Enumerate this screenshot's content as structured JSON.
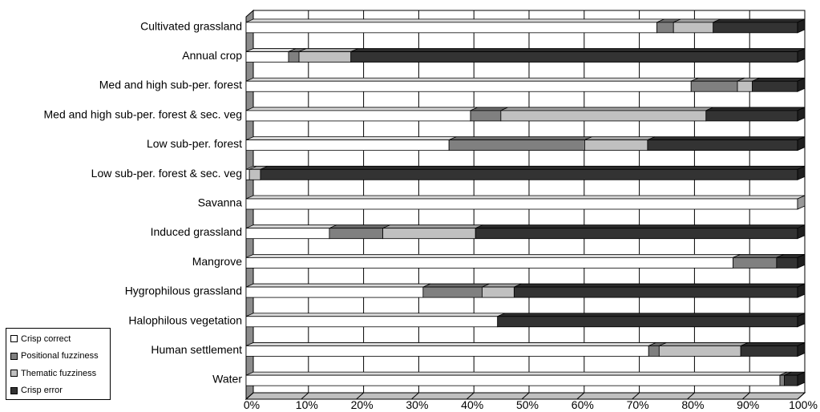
{
  "chart_data": {
    "type": "bar",
    "orientation": "horizontal",
    "stacked": "percent",
    "categories": [
      "Cultivated grassland",
      "Annual crop",
      "Med and high sub-per. forest",
      "Med and high sub-per. forest & sec. veg",
      "Low sub-per. forest",
      "Low sub-per. forest & sec. veg",
      "Savanna",
      "Induced grassland",
      "Mangrove",
      "Hygrophilous grassland",
      "Halophilous vegetation",
      "Human settlement",
      "Water"
    ],
    "series": [
      {
        "name": "Crisp correct",
        "color": "#ffffff",
        "values": [
          74.5,
          7.7,
          80.7,
          40.7,
          36.8,
          0.6,
          100,
          15.1,
          88.3,
          32.1,
          45.6,
          73.0,
          96.8
        ]
      },
      {
        "name": "Positional fuzziness",
        "color": "#808080",
        "values": [
          3.0,
          1.9,
          8.4,
          5.5,
          24.6,
          0,
          0,
          9.7,
          7.9,
          10.7,
          0,
          1.9,
          0.8
        ]
      },
      {
        "name": "Thematic fuzziness",
        "color": "#c0c0c0",
        "values": [
          7.2,
          9.4,
          2.7,
          37.2,
          11.4,
          2.0,
          0,
          16.8,
          0,
          5.8,
          0,
          14.8,
          0
        ]
      },
      {
        "name": "Crisp error",
        "color": "#333333",
        "values": [
          15.3,
          81.0,
          8.2,
          16.6,
          27.2,
          97.4,
          0,
          58.4,
          3.8,
          51.4,
          54.4,
          10.3,
          2.4
        ]
      }
    ],
    "xticks": [
      "0%",
      "10%",
      "20%",
      "30%",
      "40%",
      "50%",
      "60%",
      "70%",
      "80%",
      "90%",
      "100%"
    ],
    "xlim": [
      0,
      100
    ],
    "grid": true,
    "legend_position": "bottom-left"
  }
}
